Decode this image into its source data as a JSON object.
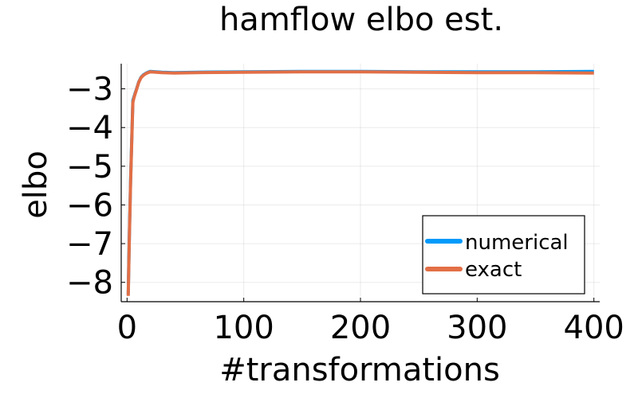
{
  "chart_data": {
    "type": "line",
    "title": "hamflow elbo est.",
    "xlabel": "#transformations",
    "ylabel": "elbo",
    "xlim": [
      -5,
      405
    ],
    "ylim": [
      -8.5,
      -2.35
    ],
    "xticks": [
      0,
      100,
      200,
      300,
      400
    ],
    "yticks": [
      -8,
      -7,
      -6,
      -5,
      -4,
      -3
    ],
    "xtick_labels": [
      "0",
      "100",
      "200",
      "300",
      "400"
    ],
    "ytick_labels": [
      "−8",
      "−7",
      "−6",
      "−5",
      "−4",
      "−3"
    ],
    "grid": true,
    "legend": {
      "position": "bottom-right"
    },
    "series": [
      {
        "name": "numerical",
        "color": "#009AFA",
        "x": [
          1,
          2,
          3,
          4,
          5,
          6,
          7,
          8,
          10,
          12,
          14,
          16,
          18,
          20,
          25,
          30,
          40,
          60,
          100,
          150,
          200,
          250,
          300,
          350,
          400
        ],
        "y": [
          -8.3,
          -6.8,
          -5.4,
          -4.3,
          -3.3,
          -3.2,
          -3.1,
          -3.02,
          -2.82,
          -2.7,
          -2.64,
          -2.6,
          -2.57,
          -2.55,
          -2.56,
          -2.57,
          -2.58,
          -2.57,
          -2.56,
          -2.55,
          -2.55,
          -2.56,
          -2.56,
          -2.56,
          -2.55
        ]
      },
      {
        "name": "exact",
        "color": "#E26F46",
        "x": [
          1,
          2,
          3,
          4,
          5,
          6,
          7,
          8,
          10,
          12,
          14,
          16,
          18,
          20,
          25,
          30,
          40,
          60,
          100,
          150,
          200,
          250,
          300,
          350,
          400
        ],
        "y": [
          -8.35,
          -6.85,
          -5.45,
          -4.35,
          -3.35,
          -3.22,
          -3.12,
          -3.03,
          -2.83,
          -2.71,
          -2.65,
          -2.61,
          -2.58,
          -2.56,
          -2.57,
          -2.58,
          -2.59,
          -2.58,
          -2.57,
          -2.56,
          -2.56,
          -2.57,
          -2.58,
          -2.58,
          -2.59
        ]
      }
    ]
  }
}
